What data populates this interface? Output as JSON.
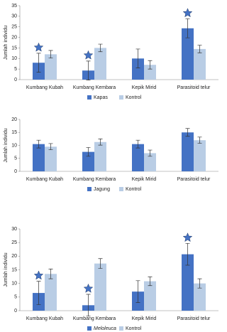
{
  "chart_data": [
    {
      "type": "bar",
      "y_label": "Jumlah individu",
      "categories": [
        "Kumbang Kubah",
        "Kumbang Kembara",
        "Kepik Mirid",
        "Parasitoid telur"
      ],
      "series": [
        {
          "name": "Kapas",
          "color": "#4472c4",
          "values": [
            8,
            4.3,
            10,
            24.3
          ],
          "errors": [
            4.5,
            4.5,
            4.5,
            4.5
          ],
          "star": [
            true,
            true,
            false,
            true
          ]
        },
        {
          "name": "Kontrol",
          "color": "#b9cde5",
          "values": [
            12,
            15,
            7,
            14.5
          ],
          "errors": [
            1.8,
            1.8,
            2,
            1.8
          ]
        }
      ],
      "ylim": [
        0,
        35
      ],
      "yticks": [
        0,
        5,
        10,
        15,
        20,
        25,
        30,
        35
      ],
      "legend": "bottom"
    },
    {
      "type": "bar",
      "y_label": "Jumlah individu",
      "categories": [
        "Kumbang Kubah",
        "Kumbang Kembara",
        "Kepik Mirid",
        "Parasitoid telur"
      ],
      "series": [
        {
          "name": "Jagung",
          "color": "#4472c4",
          "values": [
            10.5,
            7.5,
            10.5,
            15
          ],
          "errors": [
            1.5,
            1.7,
            1.5,
            1.5
          ]
        },
        {
          "name": "Kontrol",
          "color": "#b9cde5",
          "values": [
            9.5,
            11.3,
            7,
            12
          ],
          "errors": [
            1.2,
            1.2,
            1.2,
            1.2
          ]
        }
      ],
      "ylim": [
        0,
        20
      ],
      "yticks": [
        0,
        5,
        10,
        15,
        20
      ],
      "legend": "bottom"
    },
    {
      "type": "bar",
      "y_label": "Jumlah individu",
      "categories": [
        "Kumbang Kubah",
        "Kumbang Kembara",
        "Kepik Mirid",
        "Parasitoid telur"
      ],
      "series": [
        {
          "name": "Meloleuca",
          "font_style": "italic",
          "color": "#4472c4",
          "values": [
            6.5,
            2,
            7,
            20.7
          ],
          "errors": [
            4.3,
            4,
            4,
            4
          ],
          "star": [
            true,
            true,
            false,
            true
          ]
        },
        {
          "name": "Kontrol",
          "color": "#b9cde5",
          "values": [
            13.5,
            17.3,
            10.8,
            10
          ],
          "errors": [
            1.8,
            1.8,
            1.6,
            1.7
          ]
        }
      ],
      "ylim": [
        0,
        30
      ],
      "yticks": [
        0,
        5,
        10,
        15,
        20,
        25,
        30
      ],
      "legend": "bottom"
    }
  ]
}
